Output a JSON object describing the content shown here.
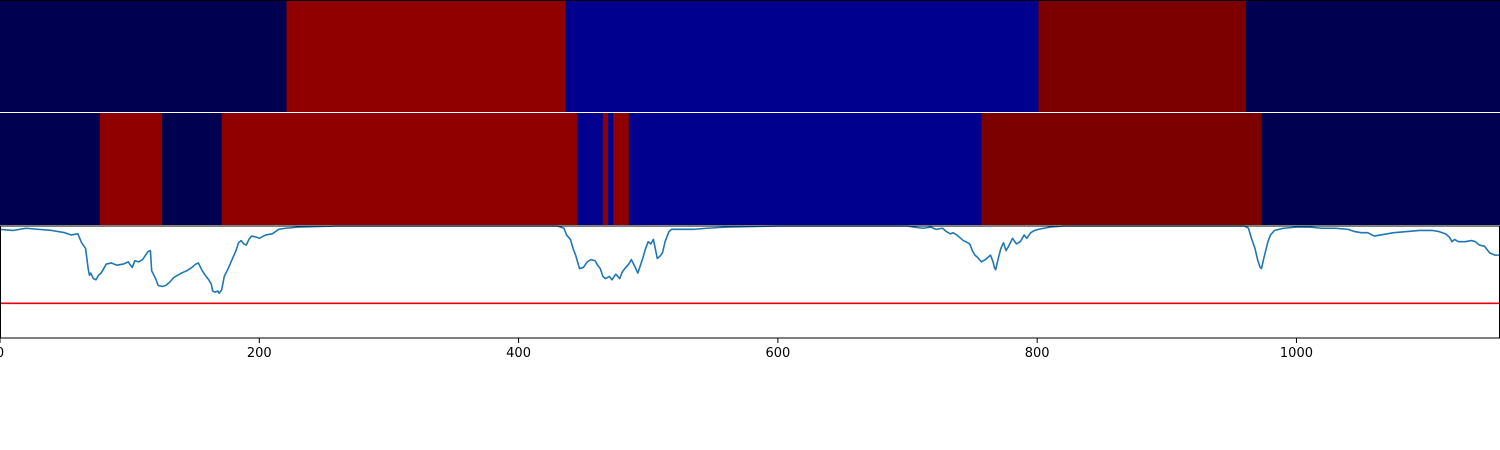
{
  "chart_data": [
    {
      "type": "heatmap",
      "panel": "segmentation-track-1",
      "xlim": [
        0,
        1157
      ],
      "colors": {
        "dark_navy": "#000050",
        "red": "#910000",
        "blue": "#00008e",
        "dark_red": "#7c0000"
      },
      "segments": [
        {
          "start": 0,
          "end": 221,
          "color": "dark_navy"
        },
        {
          "start": 221,
          "end": 436,
          "color": "red"
        },
        {
          "start": 436,
          "end": 801,
          "color": "blue"
        },
        {
          "start": 801,
          "end": 961,
          "color": "dark_red"
        },
        {
          "start": 961,
          "end": 1157,
          "color": "dark_navy"
        }
      ]
    },
    {
      "type": "heatmap",
      "panel": "segmentation-track-2",
      "xlim": [
        0,
        1157
      ],
      "colors": {
        "dark_navy": "#000050",
        "red": "#910000",
        "blue": "#00008e",
        "dark_red": "#7c0000"
      },
      "segments": [
        {
          "start": 0,
          "end": 77,
          "color": "dark_navy"
        },
        {
          "start": 77,
          "end": 125,
          "color": "red"
        },
        {
          "start": 125,
          "end": 171,
          "color": "dark_navy"
        },
        {
          "start": 171,
          "end": 445,
          "color": "red"
        },
        {
          "start": 445,
          "end": 465,
          "color": "blue"
        },
        {
          "start": 465,
          "end": 469,
          "color": "red"
        },
        {
          "start": 469,
          "end": 473,
          "color": "blue"
        },
        {
          "start": 473,
          "end": 485,
          "color": "red"
        },
        {
          "start": 485,
          "end": 757,
          "color": "blue"
        },
        {
          "start": 757,
          "end": 973,
          "color": "dark_red"
        },
        {
          "start": 973,
          "end": 1157,
          "color": "dark_navy"
        }
      ]
    },
    {
      "type": "line",
      "panel": "signal-track",
      "xlim": [
        0,
        1157
      ],
      "ylim": [
        0,
        1
      ],
      "x_ticks": [
        0,
        200,
        400,
        600,
        800,
        1000
      ],
      "x_tick_labels": [
        "0",
        "200",
        "400",
        "600",
        "800",
        "1000"
      ],
      "threshold": {
        "value": 0.31,
        "color": "#e8000b"
      },
      "series": [
        {
          "color": "#1f77b4",
          "points": [
            [
              0,
              0.97
            ],
            [
              10,
              0.96
            ],
            [
              20,
              0.98
            ],
            [
              30,
              0.97
            ],
            [
              40,
              0.96
            ],
            [
              50,
              0.94
            ],
            [
              55,
              0.92
            ],
            [
              60,
              0.93
            ],
            [
              63,
              0.85
            ],
            [
              66,
              0.8
            ],
            [
              68,
              0.62
            ],
            [
              69,
              0.56
            ],
            [
              70,
              0.58
            ],
            [
              72,
              0.53
            ],
            [
              74,
              0.52
            ],
            [
              76,
              0.56
            ],
            [
              78,
              0.58
            ],
            [
              80,
              0.62
            ],
            [
              82,
              0.66
            ],
            [
              86,
              0.67
            ],
            [
              90,
              0.65
            ],
            [
              95,
              0.66
            ],
            [
              99,
              0.68
            ],
            [
              100,
              0.66
            ],
            [
              102,
              0.63
            ],
            [
              104,
              0.69
            ],
            [
              107,
              0.68
            ],
            [
              110,
              0.7
            ],
            [
              114,
              0.77
            ],
            [
              116,
              0.78
            ],
            [
              117,
              0.6
            ],
            [
              120,
              0.53
            ],
            [
              122,
              0.47
            ],
            [
              125,
              0.46
            ],
            [
              128,
              0.47
            ],
            [
              131,
              0.5
            ],
            [
              134,
              0.54
            ],
            [
              137,
              0.56
            ],
            [
              140,
              0.58
            ],
            [
              144,
              0.6
            ],
            [
              148,
              0.63
            ],
            [
              151,
              0.66
            ],
            [
              153,
              0.67
            ],
            [
              156,
              0.6
            ],
            [
              159,
              0.55
            ],
            [
              161,
              0.52
            ],
            [
              163,
              0.48
            ],
            [
              164,
              0.42
            ],
            [
              166,
              0.41
            ],
            [
              168,
              0.42
            ],
            [
              169,
              0.4
            ],
            [
              171,
              0.43
            ],
            [
              173,
              0.55
            ],
            [
              176,
              0.62
            ],
            [
              179,
              0.7
            ],
            [
              182,
              0.78
            ],
            [
              184,
              0.85
            ],
            [
              186,
              0.87
            ],
            [
              188,
              0.84
            ],
            [
              190,
              0.83
            ],
            [
              192,
              0.88
            ],
            [
              194,
              0.91
            ],
            [
              198,
              0.9
            ],
            [
              200,
              0.89
            ],
            [
              205,
              0.92
            ],
            [
              210,
              0.93
            ],
            [
              215,
              0.97
            ],
            [
              220,
              0.98
            ],
            [
              230,
              0.99
            ],
            [
              260,
              1.0
            ],
            [
              300,
              1.0
            ],
            [
              350,
              1.0
            ],
            [
              400,
              1.0
            ],
            [
              430,
              1.0
            ],
            [
              435,
              0.98
            ],
            [
              437,
              0.92
            ],
            [
              440,
              0.88
            ],
            [
              442,
              0.8
            ],
            [
              444,
              0.74
            ],
            [
              447,
              0.62
            ],
            [
              450,
              0.63
            ],
            [
              453,
              0.68
            ],
            [
              456,
              0.7
            ],
            [
              459,
              0.69
            ],
            [
              461,
              0.65
            ],
            [
              463,
              0.62
            ],
            [
              465,
              0.55
            ],
            [
              467,
              0.53
            ],
            [
              470,
              0.55
            ],
            [
              472,
              0.52
            ],
            [
              475,
              0.57
            ],
            [
              478,
              0.53
            ],
            [
              480,
              0.59
            ],
            [
              482,
              0.62
            ],
            [
              485,
              0.66
            ],
            [
              487,
              0.7
            ],
            [
              490,
              0.63
            ],
            [
              492,
              0.58
            ],
            [
              494,
              0.65
            ],
            [
              496,
              0.72
            ],
            [
              498,
              0.8
            ],
            [
              500,
              0.86
            ],
            [
              502,
              0.84
            ],
            [
              504,
              0.88
            ],
            [
              507,
              0.71
            ],
            [
              509,
              0.73
            ],
            [
              511,
              0.76
            ],
            [
              513,
              0.86
            ],
            [
              516,
              0.95
            ],
            [
              518,
              0.97
            ],
            [
              525,
              0.97
            ],
            [
              535,
              0.97
            ],
            [
              545,
              0.98
            ],
            [
              560,
              0.99
            ],
            [
              600,
              1.0
            ],
            [
              650,
              1.0
            ],
            [
              700,
              1.0
            ],
            [
              705,
              0.99
            ],
            [
              712,
              0.98
            ],
            [
              718,
              0.99
            ],
            [
              722,
              0.97
            ],
            [
              727,
              0.98
            ],
            [
              730,
              0.95
            ],
            [
              733,
              0.93
            ],
            [
              735,
              0.94
            ],
            [
              738,
              0.92
            ],
            [
              740,
              0.9
            ],
            [
              743,
              0.87
            ],
            [
              745,
              0.86
            ],
            [
              748,
              0.84
            ],
            [
              750,
              0.78
            ],
            [
              752,
              0.74
            ],
            [
              754,
              0.72
            ],
            [
              757,
              0.68
            ],
            [
              760,
              0.7
            ],
            [
              762,
              0.72
            ],
            [
              764,
              0.74
            ],
            [
              766,
              0.68
            ],
            [
              767,
              0.63
            ],
            [
              768,
              0.61
            ],
            [
              770,
              0.71
            ],
            [
              772,
              0.8
            ],
            [
              774,
              0.85
            ],
            [
              776,
              0.78
            ],
            [
              778,
              0.82
            ],
            [
              781,
              0.89
            ],
            [
              784,
              0.84
            ],
            [
              787,
              0.86
            ],
            [
              790,
              0.92
            ],
            [
              792,
              0.89
            ],
            [
              795,
              0.94
            ],
            [
              798,
              0.96
            ],
            [
              801,
              0.97
            ],
            [
              805,
              0.98
            ],
            [
              810,
              0.99
            ],
            [
              820,
              1.0
            ],
            [
              900,
              1.0
            ],
            [
              960,
              1.0
            ],
            [
              963,
              0.98
            ],
            [
              965,
              0.9
            ],
            [
              968,
              0.8
            ],
            [
              970,
              0.7
            ],
            [
              972,
              0.63
            ],
            [
              973,
              0.62
            ],
            [
              975,
              0.72
            ],
            [
              978,
              0.86
            ],
            [
              980,
              0.92
            ],
            [
              983,
              0.96
            ],
            [
              990,
              0.98
            ],
            [
              1000,
              0.99
            ],
            [
              1010,
              0.99
            ],
            [
              1020,
              0.98
            ],
            [
              1030,
              0.98
            ],
            [
              1040,
              0.97
            ],
            [
              1045,
              0.95
            ],
            [
              1050,
              0.94
            ],
            [
              1055,
              0.94
            ],
            [
              1060,
              0.91
            ],
            [
              1065,
              0.92
            ],
            [
              1075,
              0.94
            ],
            [
              1085,
              0.95
            ],
            [
              1095,
              0.96
            ],
            [
              1105,
              0.96
            ],
            [
              1110,
              0.95
            ],
            [
              1115,
              0.93
            ],
            [
              1118,
              0.9
            ],
            [
              1120,
              0.86
            ],
            [
              1122,
              0.88
            ],
            [
              1125,
              0.86
            ],
            [
              1130,
              0.86
            ],
            [
              1135,
              0.87
            ],
            [
              1138,
              0.86
            ],
            [
              1141,
              0.83
            ],
            [
              1145,
              0.82
            ],
            [
              1149,
              0.76
            ],
            [
              1153,
              0.74
            ],
            [
              1157,
              0.74
            ]
          ]
        }
      ]
    }
  ]
}
